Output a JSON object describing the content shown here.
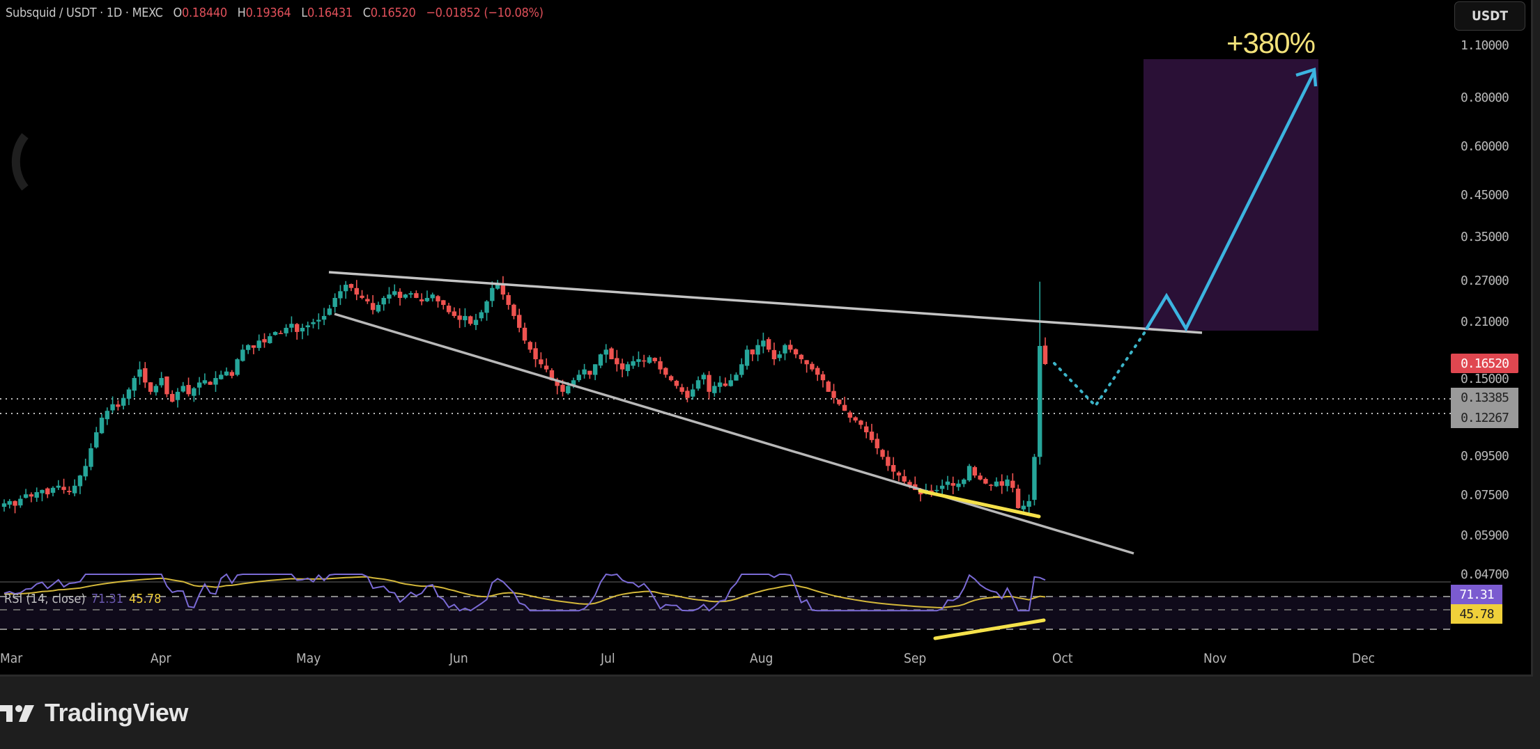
{
  "header": {
    "symbol": "Subsquid / USDT · 1D · MEXC",
    "open_label": "O",
    "open": "0.18440",
    "high_label": "H",
    "high": "0.19364",
    "low_label": "L",
    "low": "0.16431",
    "close_label": "C",
    "close": "0.16520",
    "change": "−0.01852 (−10.08%)"
  },
  "currency_button": "USDT",
  "price_axis": [
    "1.10000",
    "0.80000",
    "0.60000",
    "0.45000",
    "0.35000",
    "0.27000",
    "0.21000",
    "0.15000",
    "0.09500",
    "0.07500",
    "0.05900",
    "0.04700"
  ],
  "price_tags": {
    "last": "0.16520",
    "line_a": "0.13385",
    "line_b": "0.12267"
  },
  "rsi": {
    "label": "RSI (14, close)",
    "value": "71.31",
    "ma_value": "45.78"
  },
  "time_axis": [
    "Mar",
    "Apr",
    "May",
    "Jun",
    "Jul",
    "Aug",
    "Sep",
    "Oct",
    "Nov",
    "Dec"
  ],
  "annotation": {
    "target": "+380%"
  },
  "footer": {
    "brand": "TradingView"
  },
  "colors": {
    "up": "#26a69a",
    "down": "#ef5350",
    "wedge": "#bdbdbd",
    "projection": "#3cb4e0",
    "target_box": "#2a1036",
    "divergence": "#f5e14a",
    "rsi_line": "#7b6bd6",
    "rsi_ma": "#d4b83a"
  },
  "chart_data": {
    "type": "candlestick",
    "title": "Subsquid / USDT · 1D · MEXC",
    "xlabel": "",
    "ylabel": "USDT",
    "y_scale": "log",
    "ylim": [
      0.047,
      1.1
    ],
    "x_ticks": [
      "Mar",
      "Apr",
      "May",
      "Jun",
      "Jul",
      "Aug",
      "Sep",
      "Oct",
      "Nov",
      "Dec"
    ],
    "y_ticks": [
      1.1,
      0.8,
      0.6,
      0.45,
      0.35,
      0.27,
      0.21,
      0.15,
      0.095,
      0.075,
      0.059,
      0.047
    ],
    "last_ohlc": {
      "open": 0.1844,
      "high": 0.19364,
      "low": 0.16431,
      "close": 0.1652,
      "change": -0.01852,
      "change_pct": -10.08
    },
    "horizontal_levels": [
      0.13385,
      0.12267
    ],
    "closes_approx": [
      0.072,
      0.073,
      0.071,
      0.074,
      0.076,
      0.075,
      0.077,
      0.078,
      0.076,
      0.079,
      0.08,
      0.078,
      0.077,
      0.08,
      0.085,
      0.09,
      0.1,
      0.11,
      0.12,
      0.125,
      0.13,
      0.128,
      0.135,
      0.142,
      0.152,
      0.16,
      0.148,
      0.14,
      0.145,
      0.152,
      0.138,
      0.132,
      0.14,
      0.145,
      0.138,
      0.143,
      0.148,
      0.15,
      0.146,
      0.152,
      0.155,
      0.158,
      0.154,
      0.17,
      0.18,
      0.185,
      0.182,
      0.19,
      0.188,
      0.195,
      0.2,
      0.198,
      0.205,
      0.21,
      0.2,
      0.205,
      0.208,
      0.212,
      0.215,
      0.22,
      0.23,
      0.245,
      0.255,
      0.265,
      0.26,
      0.25,
      0.245,
      0.24,
      0.228,
      0.235,
      0.245,
      0.25,
      0.255,
      0.245,
      0.25,
      0.252,
      0.245,
      0.24,
      0.245,
      0.25,
      0.24,
      0.235,
      0.225,
      0.22,
      0.215,
      0.22,
      0.21,
      0.215,
      0.225,
      0.24,
      0.26,
      0.265,
      0.25,
      0.235,
      0.22,
      0.205,
      0.19,
      0.18,
      0.17,
      0.165,
      0.16,
      0.15,
      0.145,
      0.14,
      0.145,
      0.15,
      0.155,
      0.16,
      0.155,
      0.165,
      0.175,
      0.18,
      0.17,
      0.165,
      0.16,
      0.165,
      0.168,
      0.17,
      0.168,
      0.172,
      0.168,
      0.16,
      0.155,
      0.15,
      0.145,
      0.14,
      0.135,
      0.142,
      0.15,
      0.155,
      0.14,
      0.145,
      0.148,
      0.145,
      0.15,
      0.155,
      0.165,
      0.18,
      0.175,
      0.185,
      0.19,
      0.18,
      0.17,
      0.175,
      0.185,
      0.18,
      0.175,
      0.17,
      0.165,
      0.16,
      0.155,
      0.15,
      0.14,
      0.135,
      0.13,
      0.125,
      0.12,
      0.118,
      0.115,
      0.11,
      0.105,
      0.1,
      0.095,
      0.09,
      0.087,
      0.085,
      0.082,
      0.08,
      0.078,
      0.076,
      0.078,
      0.077,
      0.078,
      0.08,
      0.082,
      0.08,
      0.081,
      0.083,
      0.09,
      0.085,
      0.083,
      0.081,
      0.08,
      0.082,
      0.08,
      0.083,
      0.079,
      0.07,
      0.071,
      0.073,
      0.095,
      0.184,
      0.1652
    ],
    "annotations": [
      {
        "type": "wedge_upper",
        "from": [
          0.28,
          "May"
        ],
        "to": [
          0.205,
          "late Oct"
        ]
      },
      {
        "type": "wedge_lower",
        "from": [
          0.22,
          "May"
        ],
        "to": [
          0.06,
          "mid Oct"
        ]
      },
      {
        "type": "projection",
        "path": [
          0.165,
          0.13,
          0.21,
          0.245,
          0.21,
          1.0
        ],
        "label": "+380%"
      },
      {
        "type": "target_box",
        "range": [
          0.205,
          1.0
        ]
      },
      {
        "type": "divergence_support",
        "pane": "price"
      },
      {
        "type": "divergence_support",
        "pane": "rsi"
      }
    ],
    "rsi": {
      "period": 14,
      "value": 71.31,
      "ma": 45.78,
      "levels": [
        70,
        50,
        30
      ]
    }
  }
}
